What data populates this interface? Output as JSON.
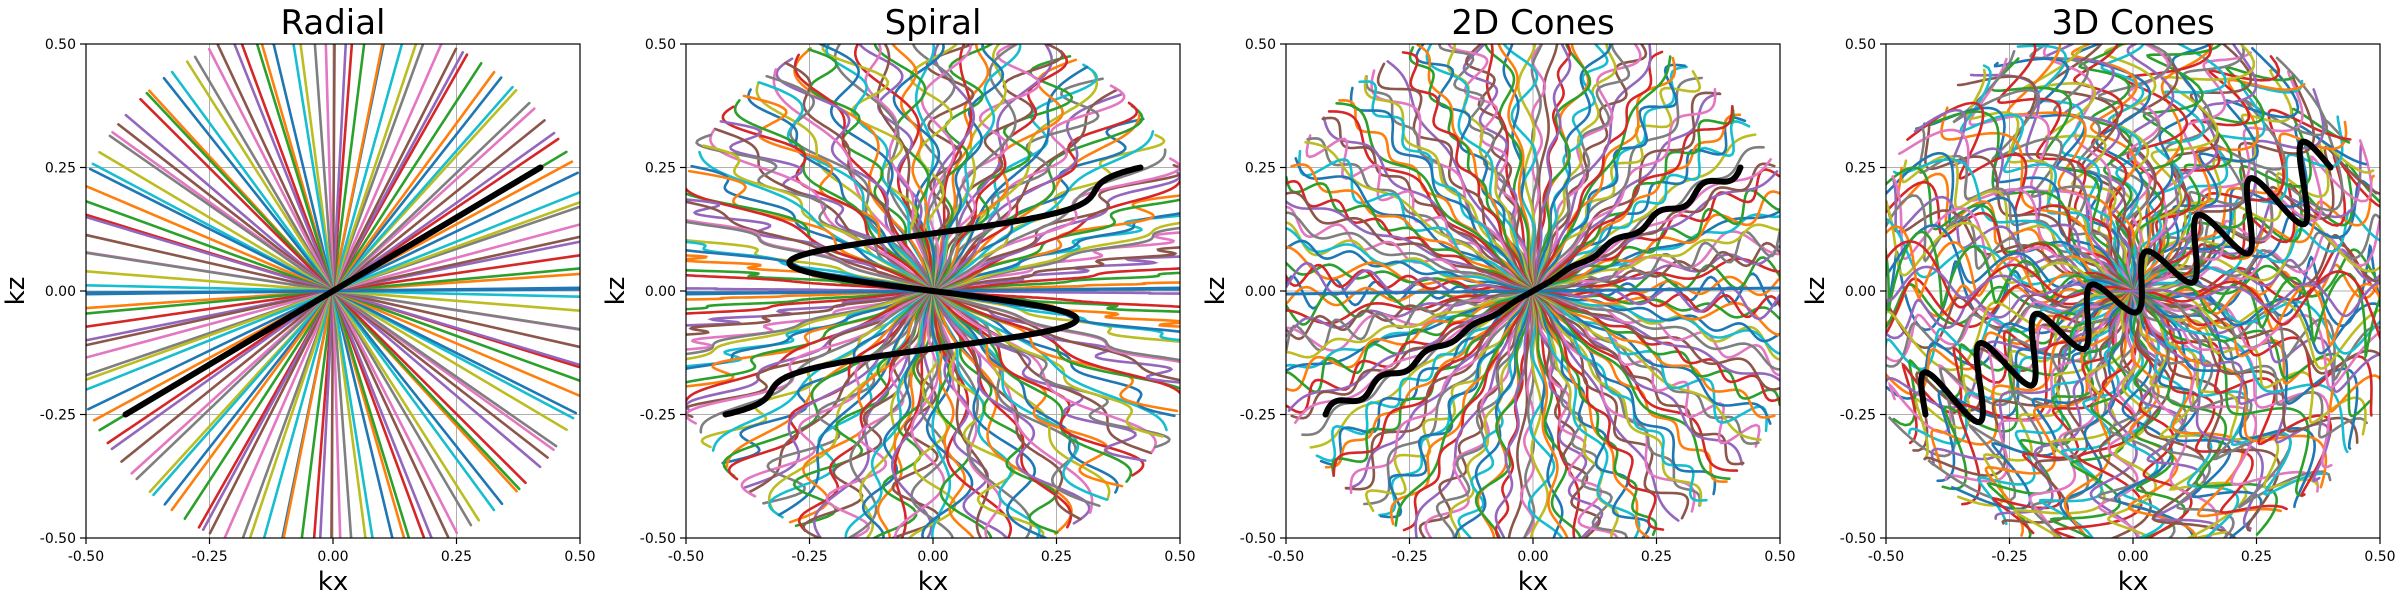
{
  "chart_data": [
    {
      "type": "line",
      "title": "Radial",
      "xlabel": "kx",
      "ylabel": "kz",
      "xlim": [
        -0.5,
        0.5
      ],
      "ylim": [
        -0.5,
        0.5
      ],
      "xticks": [
        "-0.50",
        "-0.25",
        "0.00",
        "0.25",
        "0.50"
      ],
      "yticks": [
        "-0.50",
        "-0.25",
        "0.00",
        "0.25",
        "0.50"
      ],
      "grid": true,
      "trajectory": "radial",
      "highlighted_series": {
        "x": [
          -0.42,
          0.42
        ],
        "y": [
          -0.25,
          0.25
        ],
        "color": "#000000"
      }
    },
    {
      "type": "line",
      "title": "Spiral",
      "xlabel": "kx",
      "ylabel": "kz",
      "xlim": [
        -0.5,
        0.5
      ],
      "ylim": [
        -0.5,
        0.5
      ],
      "xticks": [
        "-0.50",
        "-0.25",
        "0.00",
        "0.25",
        "0.50"
      ],
      "yticks": [
        "-0.50",
        "-0.25",
        "0.00",
        "0.25",
        "0.50"
      ],
      "grid": true,
      "trajectory": "spiral",
      "highlighted_series": {
        "x": [
          -0.42,
          0.42
        ],
        "y": [
          -0.25,
          0.25
        ],
        "color": "#000000"
      }
    },
    {
      "type": "line",
      "title": "2D Cones",
      "xlabel": "kx",
      "ylabel": "kz",
      "xlim": [
        -0.5,
        0.5
      ],
      "ylim": [
        -0.5,
        0.5
      ],
      "xticks": [
        "-0.50",
        "-0.25",
        "0.00",
        "0.25",
        "0.50"
      ],
      "yticks": [
        "-0.50",
        "-0.25",
        "0.00",
        "0.25",
        "0.50"
      ],
      "grid": true,
      "trajectory": "cones2d",
      "highlighted_series": {
        "x": [
          -0.42,
          0.42
        ],
        "y": [
          -0.25,
          0.25
        ],
        "color": "#000000"
      }
    },
    {
      "type": "line",
      "title": "3D Cones",
      "xlabel": "kx",
      "ylabel": "kz",
      "xlim": [
        -0.5,
        0.5
      ],
      "ylim": [
        -0.5,
        0.5
      ],
      "xticks": [
        "-0.50",
        "-0.25",
        "0.00",
        "0.25",
        "0.50"
      ],
      "yticks": [
        "-0.50",
        "-0.25",
        "0.00",
        "0.25",
        "0.50"
      ],
      "grid": true,
      "trajectory": "cones3d",
      "highlighted_series": {
        "x": [
          -0.42,
          0.4
        ],
        "y": [
          -0.25,
          0.25
        ],
        "color": "#000000"
      }
    }
  ],
  "colors": [
    "#1f77b4",
    "#ff7f0e",
    "#2ca02c",
    "#d62728",
    "#9467bd",
    "#8c564b",
    "#e377c2",
    "#7f7f7f",
    "#bcbd22",
    "#17becf"
  ]
}
